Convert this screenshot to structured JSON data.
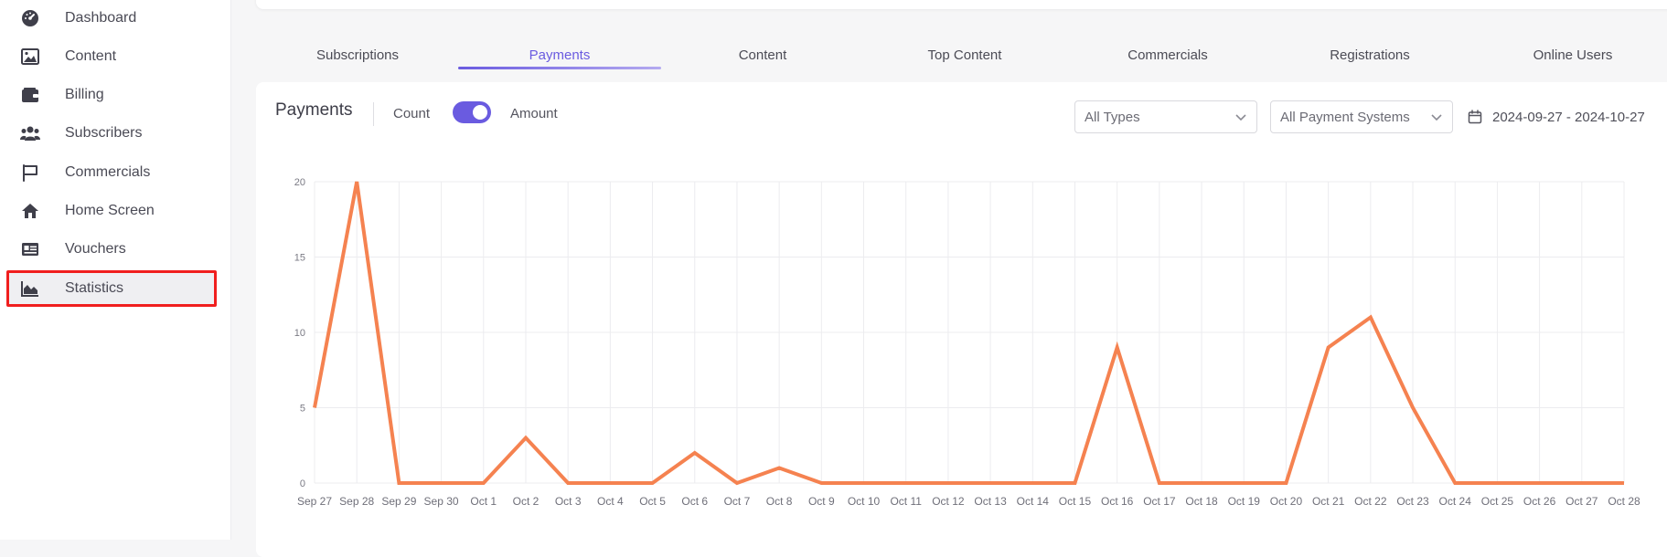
{
  "sidebar": {
    "items": [
      {
        "label": "Dashboard",
        "icon": "dashboard-gauge-icon"
      },
      {
        "label": "Content",
        "icon": "image-icon"
      },
      {
        "label": "Billing",
        "icon": "wallet-icon"
      },
      {
        "label": "Subscribers",
        "icon": "users-icon"
      },
      {
        "label": "Commercials",
        "icon": "flag-icon"
      },
      {
        "label": "Home Screen",
        "icon": "home-icon"
      },
      {
        "label": "Vouchers",
        "icon": "voucher-card-icon"
      },
      {
        "label": "Statistics",
        "icon": "area-chart-icon"
      }
    ],
    "active": "Statistics",
    "highlight_color": "#f01e1e"
  },
  "tabs": {
    "items": [
      "Subscriptions",
      "Payments",
      "Content",
      "Top Content",
      "Commercials",
      "Registrations",
      "Online Users"
    ],
    "active": "Payments",
    "accent": "#6a5be0"
  },
  "card": {
    "title": "Payments",
    "count_label": "Count",
    "amount_label": "Amount",
    "toggle_on": true,
    "type_filter": "All Types",
    "payment_system_filter": "All Payment Systems",
    "date_range": "2024-09-27 - 2024-10-27"
  },
  "chart_data": {
    "type": "line",
    "x": [
      "Sep 27",
      "Sep 28",
      "Sep 29",
      "Sep 30",
      "Oct 1",
      "Oct 2",
      "Oct 3",
      "Oct 4",
      "Oct 5",
      "Oct 6",
      "Oct 7",
      "Oct 8",
      "Oct 9",
      "Oct 10",
      "Oct 11",
      "Oct 12",
      "Oct 13",
      "Oct 14",
      "Oct 15",
      "Oct 16",
      "Oct 17",
      "Oct 18",
      "Oct 19",
      "Oct 20",
      "Oct 21",
      "Oct 22",
      "Oct 23",
      "Oct 24",
      "Oct 25",
      "Oct 26",
      "Oct 27",
      "Oct 28"
    ],
    "series": [
      {
        "values": [
          5,
          20,
          0,
          0,
          0,
          3,
          0,
          0,
          0,
          2,
          0,
          1,
          0,
          0,
          0,
          0,
          0,
          0,
          0,
          9,
          0,
          0,
          0,
          0,
          9,
          11,
          5,
          0,
          0,
          0,
          0,
          0
        ],
        "color": "#f58250"
      }
    ],
    "y_ticks": [
      0,
      5,
      10,
      15,
      20
    ],
    "ylim": [
      0,
      20
    ],
    "grid": true,
    "legend": "none"
  }
}
